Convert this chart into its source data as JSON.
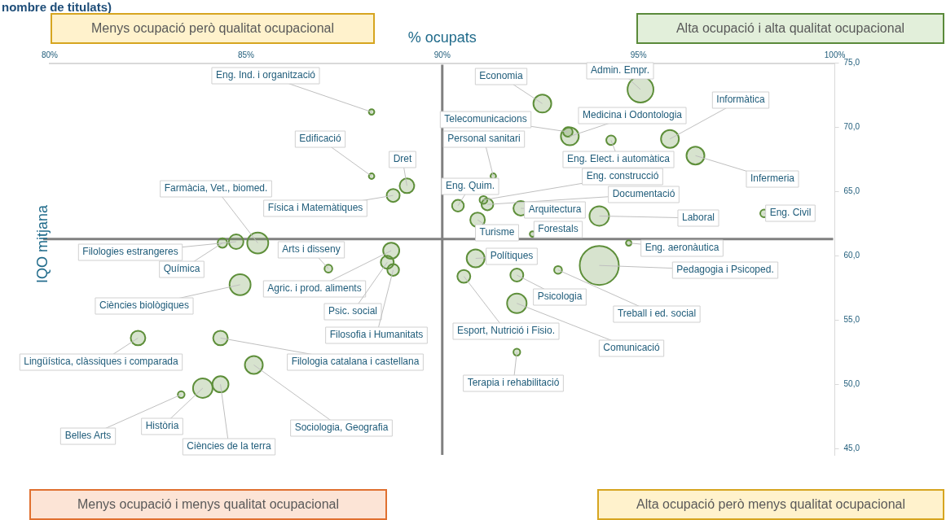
{
  "chart_data": {
    "type": "bubble",
    "title": "nombre de titulats)",
    "xlabel": "% ocupats",
    "ylabel": "IQO mitjana",
    "xlim": [
      80,
      100
    ],
    "xticks": [
      {
        "value": 80,
        "label": "80%"
      },
      {
        "value": 85,
        "label": "85%"
      },
      {
        "value": 90,
        "label": "90%"
      },
      {
        "value": 95,
        "label": "95%"
      },
      {
        "value": 100,
        "label": "100%"
      }
    ],
    "ylim": [
      44.5,
      75
    ],
    "yticks": [
      {
        "value": 45,
        "label": "45,0"
      },
      {
        "value": 50,
        "label": "50,0"
      },
      {
        "value": 55,
        "label": "55,0"
      },
      {
        "value": 60,
        "label": "60,0"
      },
      {
        "value": 65,
        "label": "65,0"
      },
      {
        "value": 70,
        "label": "70,0"
      },
      {
        "value": 75,
        "label": "75,0"
      }
    ],
    "grid": false,
    "legend": false,
    "color": "#5e8f3a",
    "x": [
      88.2,
      88.2,
      89.1,
      88.75,
      85.3,
      84.75,
      84.4,
      87.1,
      88.7,
      88.6,
      88.75,
      84.85,
      82.25,
      84.35,
      85.2,
      84.35,
      83.9,
      83.35,
      95.05,
      92.55,
      93.2,
      93.25,
      94.3,
      95.8,
      96.45,
      91.3,
      90.4,
      91.05,
      91.15,
      92.0,
      94.0,
      90.9,
      92.3,
      98.2,
      94.75,
      90.85,
      94.0,
      92.95,
      90.55,
      91.9,
      91.9,
      91.9
    ],
    "values": [
      71.2,
      66.2,
      65.45,
      64.7,
      61.0,
      61.1,
      61.0,
      59.0,
      60.4,
      59.5,
      58.9,
      57.75,
      53.6,
      53.6,
      51.5,
      50.0,
      49.7,
      49.2,
      72.95,
      71.85,
      69.65,
      69.3,
      69.0,
      69.1,
      67.8,
      66.2,
      63.9,
      64.35,
      64.0,
      63.7,
      63.1,
      62.8,
      61.7,
      63.3,
      61.0,
      59.8,
      59.25,
      58.9,
      58.4,
      58.5,
      56.3,
      52.5
    ],
    "sizes": [
      0.02,
      0.02,
      0.14,
      0.11,
      0.29,
      0.14,
      0.06,
      0.04,
      0.17,
      0.11,
      0.09,
      0.29,
      0.14,
      0.14,
      0.21,
      0.17,
      0.25,
      0.03,
      0.44,
      0.21,
      0.06,
      0.21,
      0.06,
      0.21,
      0.21,
      0.02,
      0.09,
      0.04,
      0.09,
      0.14,
      0.25,
      0.14,
      0.02,
      0.04,
      0.02,
      0.21,
      1,
      0.04,
      0.11,
      0.11,
      0.25,
      0.03
    ],
    "ref_lines": [
      {
        "axis": "x",
        "value": 90,
        "color": "#808080"
      },
      {
        "axis": "y",
        "value": 61.3,
        "color": "#808080"
      }
    ],
    "annotations": [
      "Menys ocupació però qualitat ocupacional",
      "Alta ocupació i alta qualitat ocupacional",
      "Menys ocupació i menys qualitat ocupacional",
      "Alta ocupació però menys qualitat ocupacional",
      {
        "text": "Eng. Ind. i organització",
        "x": 88.2,
        "y": 71.2
      },
      {
        "text": "Edificació",
        "x": 88.2,
        "y": 66.2
      },
      {
        "text": "Dret",
        "x": 89.1,
        "y": 65.45
      },
      {
        "text": "Física i Matemàtiques",
        "x": 88.75,
        "y": 64.7
      },
      {
        "text": "Farmàcia, Vet., biomed.",
        "x": 85.3,
        "y": 61.0
      },
      {
        "text": "Filologies estrangeres",
        "x": 84.75,
        "y": 61.1
      },
      {
        "text": "Química",
        "x": 84.4,
        "y": 61.0
      },
      {
        "text": "Arts i disseny",
        "x": 87.1,
        "y": 59.0
      },
      {
        "text": "Agric. i prod. aliments",
        "x": 88.7,
        "y": 60.4
      },
      {
        "text": "Psic. social",
        "x": 88.6,
        "y": 59.5
      },
      {
        "text": "Filosofia i Humanitats",
        "x": 88.75,
        "y": 58.9
      },
      {
        "text": "Ciències biològiques",
        "x": 84.85,
        "y": 57.75
      },
      {
        "text": "Lingüística, clàssiques i comparada",
        "x": 82.25,
        "y": 53.6
      },
      {
        "text": "Filologia catalana i castellana",
        "x": 84.35,
        "y": 53.6
      },
      {
        "text": "Sociologia, Geografia",
        "x": 85.2,
        "y": 51.5
      },
      {
        "text": "Ciències de la terra",
        "x": 84.35,
        "y": 50.0
      },
      {
        "text": "Història",
        "x": 83.9,
        "y": 49.7
      },
      {
        "text": "Belles Arts",
        "x": 83.35,
        "y": 49.2
      },
      {
        "text": "Admin. Empr.",
        "x": 95.05,
        "y": 72.95
      },
      {
        "text": "Economia",
        "x": 92.55,
        "y": 71.85
      },
      {
        "text": "Telecomunicacions",
        "x": 93.2,
        "y": 69.65
      },
      {
        "text": "Medicina i Odontologia",
        "x": 93.25,
        "y": 69.3
      },
      {
        "text": "Eng. Elect. i automàtica",
        "x": 94.3,
        "y": 69.0
      },
      {
        "text": "Informàtica",
        "x": 95.8,
        "y": 69.1
      },
      {
        "text": "Infermeria",
        "x": 96.45,
        "y": 67.8
      },
      {
        "text": "Personal sanitari",
        "x": 91.3,
        "y": 66.2
      },
      {
        "text": "Eng. Quim.",
        "x": 90.4,
        "y": 63.9
      },
      {
        "text": "Eng. construcció",
        "x": 91.05,
        "y": 64.35
      },
      {
        "text": "Documentació",
        "x": 91.15,
        "y": 64.0
      },
      {
        "text": "Arquitectura",
        "x": 92.0,
        "y": 63.7
      },
      {
        "text": "Laboral",
        "x": 94.0,
        "y": 63.1
      },
      {
        "text": "Turisme",
        "x": 90.9,
        "y": 62.8
      },
      {
        "text": "Forestals",
        "x": 92.3,
        "y": 61.7
      },
      {
        "text": "Eng. Civil",
        "x": 98.2,
        "y": 63.3
      },
      {
        "text": "Eng. aeronàutica",
        "x": 94.75,
        "y": 61.0
      },
      {
        "text": "Polítiques",
        "x": 90.85,
        "y": 59.8
      },
      {
        "text": "Pedagogia i Psicoped.",
        "x": 94.0,
        "y": 59.25
      },
      {
        "text": "Treball i ed. social",
        "x": 92.95,
        "y": 58.9
      },
      {
        "text": "Esport, Nutrició i Fisio.",
        "x": 90.55,
        "y": 58.4
      },
      {
        "text": "Psicologia",
        "x": 91.9,
        "y": 58.5
      },
      {
        "text": "Comunicació",
        "x": 91.9,
        "y": 56.3
      },
      {
        "text": "Terapia i rehabilitació",
        "x": 91.9,
        "y": 52.5
      }
    ]
  }
}
